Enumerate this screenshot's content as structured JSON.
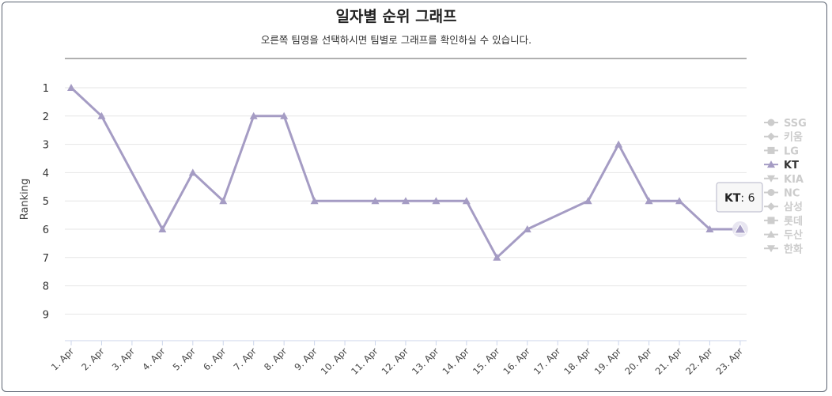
{
  "chart_data": {
    "type": "line",
    "title": "일자별 순위 그래프",
    "subtitle": "오른쪽 팀명을 선택하시면 팀별로 그래프를 확인하실 수 있습니다.",
    "ylabel": "Ranking",
    "xlabel": "",
    "ylim": [
      1,
      10
    ],
    "y_reversed": true,
    "yticks": [
      1,
      2,
      3,
      4,
      5,
      6,
      7,
      8,
      9
    ],
    "categories": [
      "1. Apr",
      "2. Apr",
      "3. Apr",
      "4. Apr",
      "5. Apr",
      "6. Apr",
      "7. Apr",
      "8. Apr",
      "9. Apr",
      "10. Apr",
      "11. Apr",
      "12. Apr",
      "13. Apr",
      "14. Apr",
      "15. Apr",
      "16. Apr",
      "17. Apr",
      "18. Apr",
      "19. Apr",
      "20. Apr",
      "21. Apr",
      "22. Apr",
      "23. Apr"
    ],
    "series": [
      {
        "name": "KT",
        "color": "#a59cc4",
        "marker": "triangle",
        "values": [
          1,
          2,
          null,
          6,
          4,
          5,
          2,
          2,
          5,
          null,
          5,
          5,
          5,
          5,
          7,
          6,
          null,
          5,
          3,
          5,
          5,
          6,
          6
        ]
      }
    ],
    "legend": {
      "placement": "right",
      "items": [
        {
          "name": "SSG",
          "marker": "circle",
          "active": false
        },
        {
          "name": "키움",
          "marker": "diamond",
          "active": false
        },
        {
          "name": "LG",
          "marker": "square",
          "active": false
        },
        {
          "name": "KT",
          "marker": "triangle",
          "active": true
        },
        {
          "name": "KIA",
          "marker": "triangle-down",
          "active": false
        },
        {
          "name": "NC",
          "marker": "circle",
          "active": false
        },
        {
          "name": "삼성",
          "marker": "diamond",
          "active": false
        },
        {
          "name": "롯데",
          "marker": "square",
          "active": false
        },
        {
          "name": "두산",
          "marker": "triangle",
          "active": false
        },
        {
          "name": "한화",
          "marker": "triangle-down",
          "active": false
        }
      ]
    },
    "tooltip": {
      "series": "KT",
      "value": "6",
      "category_index": 22
    },
    "grid": true,
    "colors": {
      "inactive": "#cccccc",
      "active_text": "#333333",
      "grid": "#e6e6e6",
      "axis": "#ccd6eb"
    }
  }
}
